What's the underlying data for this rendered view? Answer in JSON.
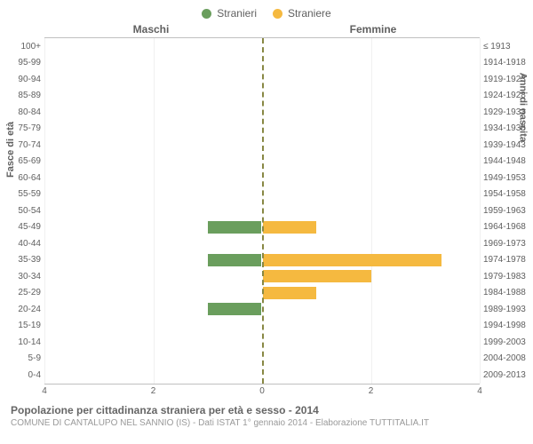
{
  "chart": {
    "type": "diverging-bar",
    "legend": [
      {
        "label": "Stranieri",
        "color": "#6a9e5d"
      },
      {
        "label": "Straniere",
        "color": "#f5b940"
      }
    ],
    "panel_left_title": "Maschi",
    "panel_right_title": "Femmine",
    "y_axis_left_title": "Fasce di età",
    "y_axis_right_title": "Anni di nascita",
    "age_bands": [
      {
        "age": "100+",
        "birth": "≤ 1913",
        "male": 0,
        "female": 0
      },
      {
        "age": "95-99",
        "birth": "1914-1918",
        "male": 0,
        "female": 0
      },
      {
        "age": "90-94",
        "birth": "1919-1923",
        "male": 0,
        "female": 0
      },
      {
        "age": "85-89",
        "birth": "1924-1928",
        "male": 0,
        "female": 0
      },
      {
        "age": "80-84",
        "birth": "1929-1933",
        "male": 0,
        "female": 0
      },
      {
        "age": "75-79",
        "birth": "1934-1938",
        "male": 0,
        "female": 0
      },
      {
        "age": "70-74",
        "birth": "1939-1943",
        "male": 0,
        "female": 0
      },
      {
        "age": "65-69",
        "birth": "1944-1948",
        "male": 0,
        "female": 0
      },
      {
        "age": "60-64",
        "birth": "1949-1953",
        "male": 0,
        "female": 0
      },
      {
        "age": "55-59",
        "birth": "1954-1958",
        "male": 0,
        "female": 0
      },
      {
        "age": "50-54",
        "birth": "1959-1963",
        "male": 0,
        "female": 0
      },
      {
        "age": "45-49",
        "birth": "1964-1968",
        "male": 1,
        "female": 1
      },
      {
        "age": "40-44",
        "birth": "1969-1973",
        "male": 0,
        "female": 0
      },
      {
        "age": "35-39",
        "birth": "1974-1978",
        "male": 1,
        "female": 3.3
      },
      {
        "age": "30-34",
        "birth": "1979-1983",
        "male": 0,
        "female": 2
      },
      {
        "age": "25-29",
        "birth": "1984-1988",
        "male": 0,
        "female": 1
      },
      {
        "age": "20-24",
        "birth": "1989-1993",
        "male": 1,
        "female": 0
      },
      {
        "age": "15-19",
        "birth": "1994-1998",
        "male": 0,
        "female": 0
      },
      {
        "age": "10-14",
        "birth": "1999-2003",
        "male": 0,
        "female": 0
      },
      {
        "age": "5-9",
        "birth": "2004-2008",
        "male": 0,
        "female": 0
      },
      {
        "age": "0-4",
        "birth": "2009-2013",
        "male": 0,
        "female": 0
      }
    ],
    "colors": {
      "male_bar": "#6a9e5d",
      "female_bar": "#f5b940",
      "bar_border": "#ffffff",
      "grid": "#f0f0f0",
      "center_line": "#888844",
      "text": "#606060",
      "background": "#ffffff"
    },
    "x_axis": {
      "max": 4,
      "ticks": [
        4,
        2,
        0,
        2,
        4
      ]
    },
    "footer_title": "Popolazione per cittadinanza straniera per età e sesso - 2014",
    "footer_source": "COMUNE DI CANTALUPO NEL SANNIO (IS) - Dati ISTAT 1° gennaio 2014 - Elaborazione TUTTITALIA.IT"
  }
}
